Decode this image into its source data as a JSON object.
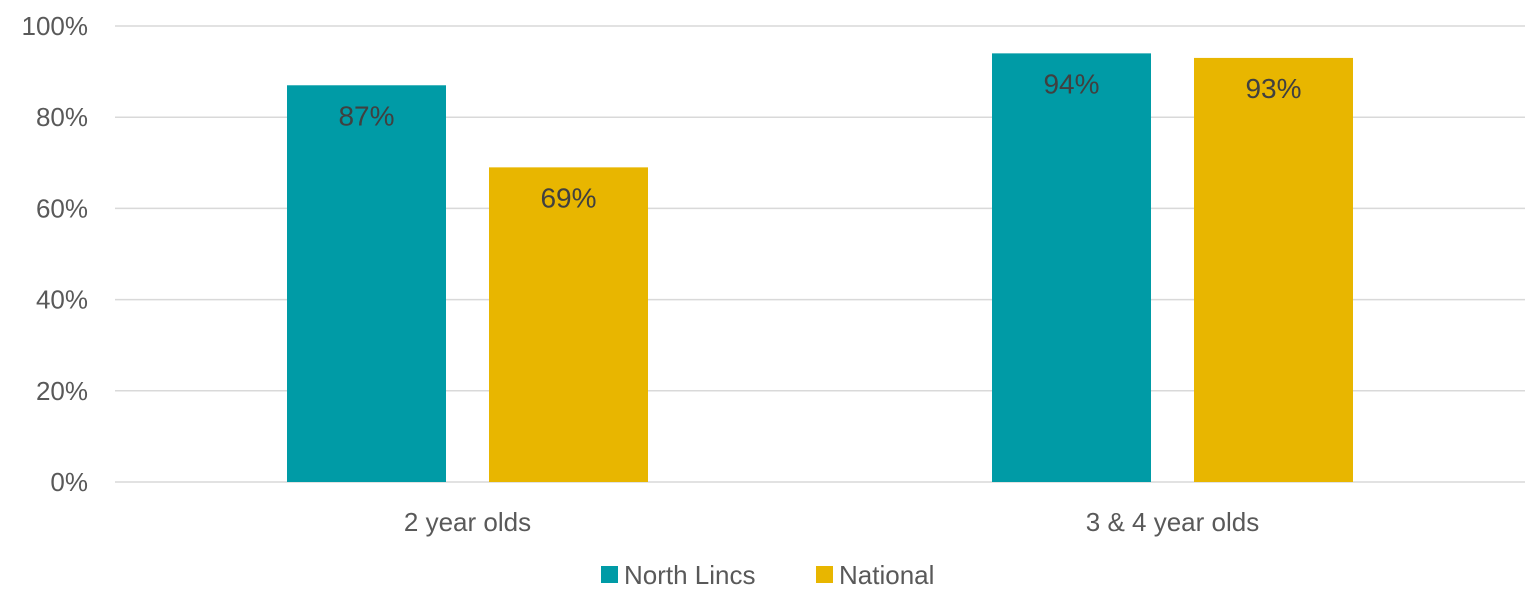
{
  "chart_data": {
    "type": "bar",
    "title": "",
    "xlabel": "",
    "ylabel": "",
    "categories": [
      "2 year olds",
      "3 & 4  year olds"
    ],
    "series": [
      {
        "name": "North Lincs",
        "values": [
          87,
          94
        ],
        "color": "#009ba6"
      },
      {
        "name": "National",
        "values": [
          69,
          93
        ],
        "color": "#e8b600"
      }
    ],
    "ylim": [
      0,
      100
    ],
    "yticks": [
      0,
      20,
      40,
      60,
      80,
      100
    ],
    "ytick_labels": [
      "0%",
      "20%",
      "40%",
      "60%",
      "80%",
      "100%"
    ],
    "data_labels": [
      [
        "87%",
        "94%"
      ],
      [
        "69%",
        "93%"
      ]
    ],
    "grid": true,
    "legend_position": "bottom-center"
  }
}
